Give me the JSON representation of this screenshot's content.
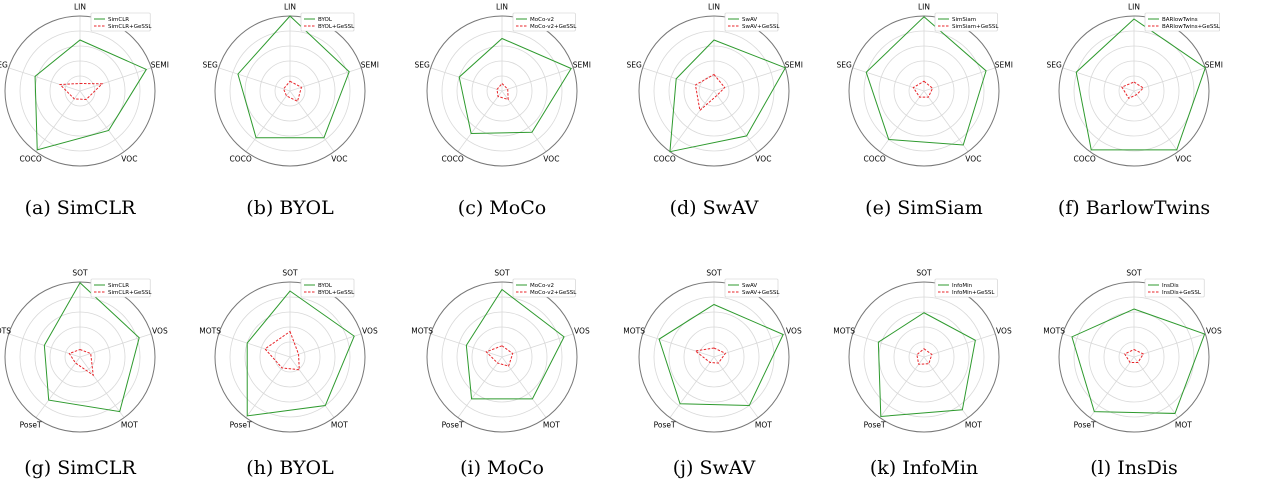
{
  "colors": {
    "baseline": "#2e9a2e",
    "gessl": "#e8252a",
    "grid": "#d9d9d9",
    "frame": "#777777"
  },
  "chart_data": [
    {
      "type": "radar",
      "caption": "(a) SimCLR",
      "axes": [
        "LIN",
        "SEMI",
        "VOC",
        "COCO",
        "SEG"
      ],
      "rmax": 1.0,
      "series": [
        {
          "name": "SimCLR",
          "style": "solid",
          "values": [
            0.68,
            0.93,
            0.65,
            0.97,
            0.63
          ]
        },
        {
          "name": "SimCLR+GeSSL",
          "style": "dashed",
          "values": [
            0.1,
            0.31,
            0.14,
            0.13,
            0.28
          ]
        }
      ]
    },
    {
      "type": "radar",
      "caption": "(b) BYOL",
      "axes": [
        "LIN",
        "SEMI",
        "VOC",
        "COCO",
        "SEG"
      ],
      "rmax": 1.0,
      "series": [
        {
          "name": "BYOL",
          "style": "solid",
          "values": [
            1.0,
            0.83,
            0.77,
            0.77,
            0.73
          ]
        },
        {
          "name": "BYOL+GeSSL",
          "style": "dashed",
          "values": [
            0.13,
            0.16,
            0.17,
            0.08,
            0.09
          ]
        }
      ]
    },
    {
      "type": "radar",
      "caption": "(c) MoCo",
      "axes": [
        "LIN",
        "SEMI",
        "VOC",
        "COCO",
        "SEG"
      ],
      "rmax": 1.0,
      "series": [
        {
          "name": "MoCo-v2",
          "style": "solid",
          "values": [
            0.7,
            0.97,
            0.68,
            0.7,
            0.6
          ]
        },
        {
          "name": "MoCo-v2+GeSSL",
          "style": "dashed",
          "values": [
            0.1,
            0.08,
            0.14,
            0.09,
            0.07
          ]
        }
      ]
    },
    {
      "type": "radar",
      "caption": "(d) SwAV",
      "axes": [
        "LIN",
        "SEMI",
        "VOC",
        "COCO",
        "SEG"
      ],
      "rmax": 1.0,
      "series": [
        {
          "name": "SwAV",
          "style": "solid",
          "values": [
            0.68,
            1.0,
            0.74,
            1.0,
            0.53
          ]
        },
        {
          "name": "SwAV+GeSSL",
          "style": "dashed",
          "values": [
            0.22,
            0.15,
            0.07,
            0.32,
            0.26
          ]
        }
      ]
    },
    {
      "type": "radar",
      "caption": "(e) SimSiam",
      "axes": [
        "LIN",
        "SEMI",
        "VOC",
        "COCO",
        "SEG"
      ],
      "rmax": 1.0,
      "series": [
        {
          "name": "SimSiam",
          "style": "solid",
          "values": [
            0.99,
            0.87,
            0.89,
            0.8,
            0.81
          ]
        },
        {
          "name": "SimSiam+GeSSL",
          "style": "dashed",
          "values": [
            0.13,
            0.12,
            0.1,
            0.1,
            0.15
          ]
        }
      ]
    },
    {
      "type": "radar",
      "caption": "(f) BarlowTwins",
      "axes": [
        "LIN",
        "SEMI",
        "VOC",
        "COCO",
        "SEG"
      ],
      "rmax": 1.0,
      "series": [
        {
          "name": "BARlowTwins",
          "style": "solid",
          "values": [
            0.96,
            1.0,
            0.97,
            0.97,
            0.81
          ]
        },
        {
          "name": "BARlowTwins+GeSSL",
          "style": "dashed",
          "values": [
            0.12,
            0.13,
            0.06,
            0.12,
            0.17
          ]
        }
      ]
    },
    {
      "type": "radar",
      "caption": "(g) SimCLR",
      "axes": [
        "SOT",
        "VOS",
        "MOT",
        "PoseT",
        "MOTS"
      ],
      "rmax": 1.0,
      "series": [
        {
          "name": "SimCLR",
          "style": "solid",
          "values": [
            0.99,
            0.83,
            0.9,
            0.71,
            0.5
          ]
        },
        {
          "name": "SimCLR+GeSSL",
          "style": "dashed",
          "values": [
            0.1,
            0.15,
            0.3,
            0.1,
            0.15
          ]
        }
      ]
    },
    {
      "type": "radar",
      "caption": "(h) BYOL",
      "axes": [
        "SOT",
        "VOS",
        "MOT",
        "PoseT",
        "MOTS"
      ],
      "rmax": 1.0,
      "series": [
        {
          "name": "BYOL",
          "style": "solid",
          "values": [
            0.88,
            0.9,
            0.8,
            0.97,
            0.6
          ]
        },
        {
          "name": "BYOL+GeSSL",
          "style": "dashed",
          "values": [
            0.34,
            0.12,
            0.21,
            0.18,
            0.35
          ]
        }
      ]
    },
    {
      "type": "radar",
      "caption": "(i) MoCo",
      "axes": [
        "SOT",
        "VOS",
        "MOT",
        "PoseT",
        "MOTS"
      ],
      "rmax": 1.0,
      "series": [
        {
          "name": "MoCo-v2",
          "style": "solid",
          "values": [
            0.9,
            0.87,
            0.69,
            0.69,
            0.5
          ]
        },
        {
          "name": "MoCo-v2+GeSSL",
          "style": "dashed",
          "values": [
            0.15,
            0.15,
            0.15,
            0.1,
            0.22
          ]
        }
      ]
    },
    {
      "type": "radar",
      "caption": "(j) SwAV",
      "axes": [
        "SOT",
        "VOS",
        "MOT",
        "PoseT",
        "MOTS"
      ],
      "rmax": 1.0,
      "series": [
        {
          "name": "SwAV",
          "style": "solid",
          "values": [
            0.7,
            0.97,
            0.8,
            0.77,
            0.77
          ]
        },
        {
          "name": "SwAV+GeSSL",
          "style": "dashed",
          "values": [
            0.12,
            0.16,
            0.1,
            0.09,
            0.26
          ]
        }
      ]
    },
    {
      "type": "radar",
      "caption": "(k) InfoMin",
      "axes": [
        "SOT",
        "VOS",
        "MOT",
        "PoseT",
        "MOTS"
      ],
      "rmax": 1.0,
      "series": [
        {
          "name": "InfoMin",
          "style": "solid",
          "values": [
            0.59,
            0.72,
            0.87,
            0.98,
            0.64
          ]
        },
        {
          "name": "InfoMin+GeSSL",
          "style": "dashed",
          "values": [
            0.11,
            0.11,
            0.11,
            0.12,
            0.1
          ]
        }
      ]
    },
    {
      "type": "radar",
      "caption": "(l) InsDis",
      "axes": [
        "SOT",
        "VOS",
        "MOT",
        "PoseT",
        "MOTS"
      ],
      "rmax": 1.0,
      "series": [
        {
          "name": "InsDis",
          "style": "solid",
          "values": [
            0.64,
            0.99,
            0.93,
            0.9,
            0.87
          ]
        },
        {
          "name": "InsDis+GeSSL",
          "style": "dashed",
          "values": [
            0.1,
            0.13,
            0.09,
            0.09,
            0.13
          ]
        }
      ]
    }
  ]
}
